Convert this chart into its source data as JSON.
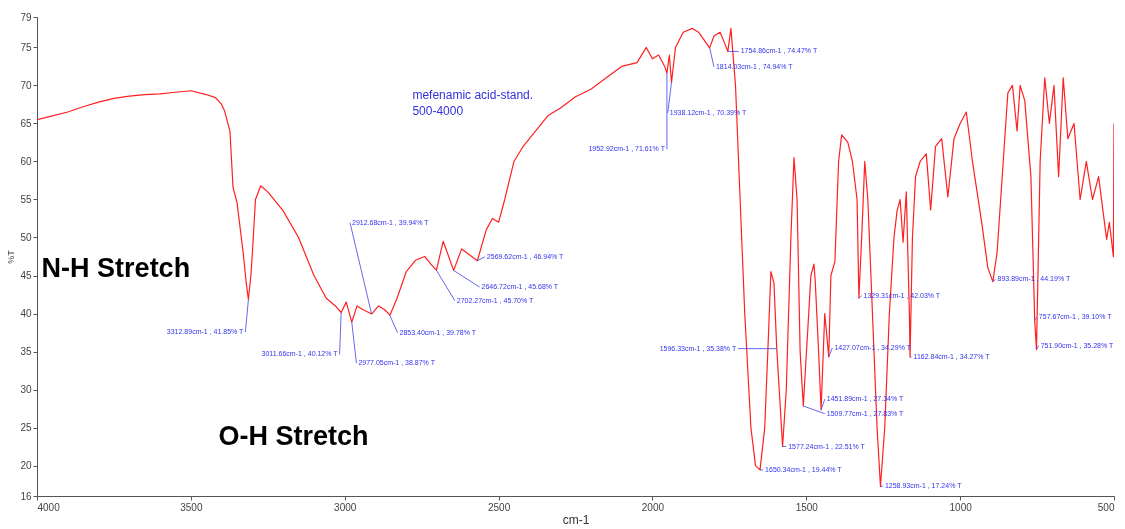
{
  "chart_data": {
    "type": "line",
    "xlabel": "cm-1",
    "ylabel": "%T",
    "xlim": [
      4000,
      500
    ],
    "xticks": [
      4000,
      3500,
      3000,
      2500,
      2000,
      1500,
      1000,
      500
    ],
    "ylim": [
      16,
      79
    ],
    "yticks": [
      16,
      20,
      25,
      30,
      35,
      40,
      45,
      50,
      55,
      60,
      65,
      70,
      75,
      79
    ],
    "grid": false,
    "marker": "none",
    "line_style": "solid",
    "series": [
      {
        "color": "#ff2020",
        "x": [
          4000,
          3950,
          3900,
          3850,
          3800,
          3750,
          3700,
          3650,
          3600,
          3550,
          3500,
          3450,
          3420,
          3400,
          3390,
          3373,
          3363,
          3350,
          3330,
          3320,
          3313,
          3305,
          3300,
          3290,
          3273,
          3250,
          3200,
          3150,
          3100,
          3060,
          3030,
          3011.66,
          2995,
          2977,
          2960,
          2940,
          2912,
          2890,
          2870,
          2853,
          2830,
          2800,
          2770,
          2740,
          2720,
          2702,
          2680,
          2646,
          2620,
          2569,
          2540,
          2520,
          2500,
          2480,
          2450,
          2420,
          2380,
          2340,
          2300,
          2250,
          2200,
          2150,
          2100,
          2050,
          2020,
          2000,
          1980,
          1960,
          1952.92,
          1945,
          1938,
          1925,
          1900,
          1870,
          1850,
          1814,
          1800,
          1780,
          1765,
          1754.86,
          1745,
          1730,
          1715,
          1700,
          1680,
          1665,
          1650.34,
          1635,
          1625,
          1615,
          1605,
          1596,
          1585,
          1577,
          1565,
          1550,
          1540,
          1530,
          1520,
          1509.77,
          1495,
          1485,
          1475,
          1470.92,
          1460,
          1451.89,
          1440,
          1427,
          1420,
          1407,
          1395,
          1385,
          1365,
          1350,
          1335,
          1329,
          1320,
          1310,
          1300,
          1285,
          1270,
          1258.93,
          1245,
          1230,
          1215,
          1205,
          1195,
          1185.51,
          1175,
          1165,
          1162.84,
          1155,
          1145,
          1130,
          1110,
          1095.8,
          1080,
          1060,
          1040,
          1020,
          1000,
          980,
          960,
          930,
          910,
          893.89,
          880,
          860,
          845,
          830,
          815,
          805,
          790,
          770,
          757.67,
          751.9,
          740,
          725,
          710,
          695,
          680,
          665,
          650,
          630,
          610,
          590,
          570,
          550,
          524,
          515,
          502,
          500
        ],
        "values": [
          65.5,
          66,
          66.5,
          67.2,
          67.8,
          68.3,
          68.6,
          68.8,
          68.9,
          69.1,
          69.3,
          68.8,
          68.4,
          67.5,
          66.6,
          64,
          56.6,
          54.6,
          48,
          44,
          41.85,
          45,
          48,
          55,
          56.8,
          56,
          53.5,
          50,
          45,
          42,
          41,
          40.12,
          41.5,
          38.87,
          41,
          40.5,
          39.94,
          41,
          40.5,
          39.78,
          42,
          45.5,
          47,
          47.5,
          46.5,
          45.7,
          49.5,
          45.68,
          48.5,
          46.94,
          51,
          52.5,
          52,
          55,
          60,
          62,
          64,
          66,
          67,
          68.5,
          69.5,
          71,
          72.5,
          73,
          75,
          73.5,
          74,
          72.5,
          71.61,
          74,
          70.39,
          75,
          77,
          77.5,
          77,
          74.94,
          76.5,
          77,
          75.5,
          74.47,
          77.5,
          70,
          55,
          40,
          25,
          20,
          19.44,
          25,
          35,
          45.5,
          44,
          35.38,
          28,
          22.51,
          30,
          50,
          60.5,
          55,
          35,
          27.83,
          38,
          45,
          46.5,
          44.25,
          35,
          27.34,
          40,
          34.29,
          45,
          46.82,
          60,
          63.5,
          62.5,
          60,
          55,
          42.03,
          50,
          60,
          55,
          40,
          25,
          17.24,
          25,
          40,
          50,
          53.5,
          55,
          49.38,
          56,
          40,
          34.27,
          50,
          58,
          60,
          61,
          53.63,
          62,
          63,
          55.32,
          63,
          65,
          66.5,
          60,
          52,
          46,
          44.19,
          48,
          60,
          69,
          70,
          64,
          70,
          68,
          58,
          39.1,
          35.28,
          60,
          71,
          65,
          70,
          58,
          71,
          63,
          65,
          55,
          60,
          55,
          58,
          49.76,
          52,
          47.48,
          65
        ]
      }
    ],
    "annotations": [
      "N-H Stretch",
      "O-H Stretch",
      "mefenamic acid-stand.\n500-4000",
      {
        "text": "3312.89cm-1 , 41.85% T",
        "x": 3312.89,
        "y": 41.85
      },
      {
        "text": "3011.66cm-1 , 40.12% T",
        "x": 3011.66,
        "y": 40.12
      },
      {
        "text": "2977.05cm-1 , 38.87% T",
        "x": 2977.05,
        "y": 38.87
      },
      {
        "text": "2912.68cm-1 , 39.94% T",
        "x": 2912.68,
        "y": 39.94
      },
      {
        "text": "2853.40cm-1 , 39.78% T",
        "x": 2853.4,
        "y": 39.78
      },
      {
        "text": "2702.27cm-1 , 45.70% T",
        "x": 2702.27,
        "y": 45.7
      },
      {
        "text": "2646.72cm-1 , 45.68% T",
        "x": 2646.72,
        "y": 45.68
      },
      {
        "text": "2569.62cm-1 , 46.94% T",
        "x": 2569.62,
        "y": 46.94
      },
      {
        "text": "1952.92cm-1 , 71.61% T",
        "x": 1952.92,
        "y": 71.61
      },
      {
        "text": "1938.12cm-1 , 70.39% T",
        "x": 1938.12,
        "y": 70.39
      },
      {
        "text": "1814.03cm-1 , 74.94% T",
        "x": 1814.03,
        "y": 74.94
      },
      {
        "text": "1754.86cm-1 , 74.47% T",
        "x": 1754.86,
        "y": 74.47
      },
      {
        "text": "1596.33cm-1 , 35.38% T",
        "x": 1596.33,
        "y": 35.38
      },
      {
        "text": "1650.34cm-1 , 19.44% T",
        "x": 1650.34,
        "y": 19.44
      },
      {
        "text": "1577.24cm-1 , 22.51% T",
        "x": 1577.24,
        "y": 22.51
      },
      {
        "text": "1509.77cm-1 , 27.83% T",
        "x": 1509.77,
        "y": 27.83
      },
      {
        "text": "1451.89cm-1 , 27.34% T",
        "x": 1451.89,
        "y": 27.34
      },
      {
        "text": "1427.07cm-1 , 34.29% T",
        "x": 1427.07,
        "y": 34.29
      },
      {
        "text": "1258.93cm-1 , 17.24% T",
        "x": 1258.93,
        "y": 17.24
      },
      {
        "text": "1162.84cm-1 , 34.27% T",
        "x": 1162.84,
        "y": 34.27
      },
      {
        "text": "1329.31cm-1 , 42.03% T",
        "x": 1329.31,
        "y": 42.03
      },
      {
        "text": "893.89cm-1 , 44.19% T",
        "x": 893.89,
        "y": 44.19
      },
      {
        "text": "757.67cm-1 , 39.10% T",
        "x": 757.67,
        "y": 39.1
      },
      {
        "text": "751.90cm-1 , 35.28% T",
        "x": 751.9,
        "y": 35.28
      }
    ]
  }
}
